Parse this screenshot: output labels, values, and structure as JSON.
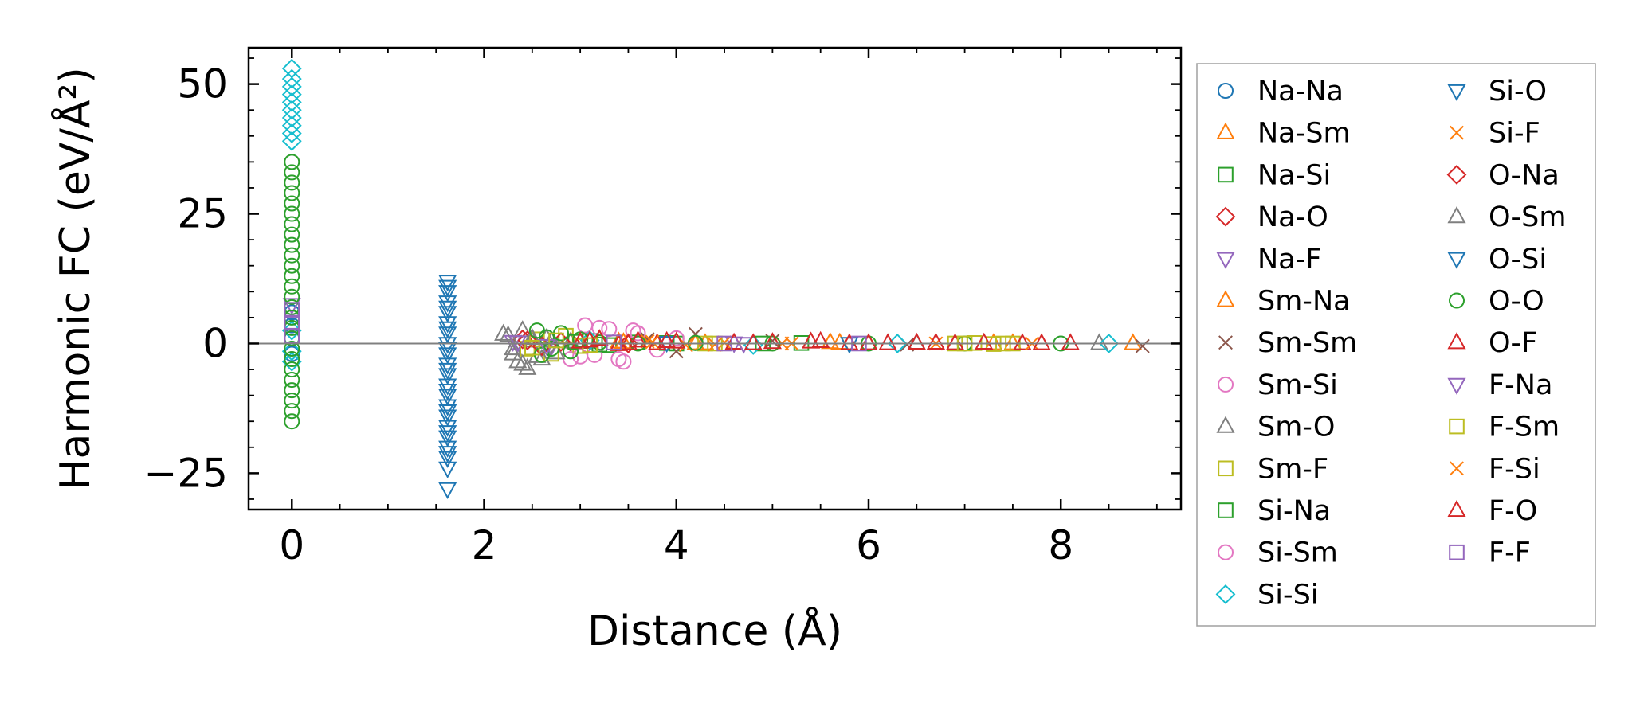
{
  "chart_data": {
    "type": "scatter",
    "xlabel": "Distance (Å)",
    "ylabel": "Harmonic FC (eV/Å²)",
    "xlim": [
      -0.45,
      9.25
    ],
    "ylim": [
      -32,
      57
    ],
    "x_ticks": [
      0,
      2,
      4,
      6,
      8
    ],
    "x_tick_labels": [
      "0",
      "2",
      "4",
      "6",
      "8"
    ],
    "y_ticks": [
      -25,
      0,
      25,
      50
    ],
    "y_tick_labels": [
      "−25",
      "0",
      "25",
      "50"
    ],
    "zero_line": 0,
    "grid": false,
    "legend_position": "outside-right",
    "legend_columns": 2,
    "series": [
      {
        "name": "Na-Na",
        "marker": "circle",
        "color": "#1f77b4",
        "points": [
          [
            0.0,
            1.0
          ],
          [
            0.0,
            3.5
          ],
          [
            0.0,
            -2.0
          ],
          [
            0.0,
            6.0
          ]
        ]
      },
      {
        "name": "Na-Sm",
        "marker": "triangle-up",
        "color": "#ff7f0e",
        "points": [
          [
            3.4,
            0.3
          ],
          [
            4.2,
            0.0
          ],
          [
            5.6,
            0.2
          ],
          [
            7.3,
            0.0
          ],
          [
            8.75,
            0.0
          ]
        ]
      },
      {
        "name": "Na-Si",
        "marker": "square",
        "color": "#2ca02c",
        "points": [
          [
            3.1,
            0.5
          ],
          [
            3.3,
            -0.3
          ],
          [
            3.6,
            0.2
          ],
          [
            4.0,
            0.0
          ],
          [
            5.3,
            0.1
          ]
        ]
      },
      {
        "name": "Na-O",
        "marker": "diamond",
        "color": "#d62728",
        "points": [
          [
            2.4,
            0.8
          ],
          [
            2.6,
            -0.6
          ],
          [
            2.9,
            0.3
          ],
          [
            3.5,
            0.0
          ]
        ]
      },
      {
        "name": "Na-F",
        "marker": "triangle-down",
        "color": "#9467bd",
        "points": [
          [
            0.0,
            7.5
          ],
          [
            2.3,
            0.4
          ],
          [
            2.7,
            -0.5
          ],
          [
            4.6,
            0.1
          ]
        ]
      },
      {
        "name": "Sm-Na",
        "marker": "triangle-up",
        "color": "#ff7f0e",
        "points": [
          [
            3.45,
            0.2
          ],
          [
            4.3,
            0.0
          ],
          [
            5.7,
            0.1
          ],
          [
            7.5,
            0.0
          ]
        ]
      },
      {
        "name": "Sm-Sm",
        "marker": "x",
        "color": "#8c564b",
        "points": [
          [
            3.7,
            0.8
          ],
          [
            4.0,
            -1.5
          ],
          [
            4.2,
            1.8
          ],
          [
            5.0,
            0.5
          ],
          [
            6.4,
            -0.2
          ],
          [
            8.85,
            -0.5
          ]
        ]
      },
      {
        "name": "Sm-Si",
        "marker": "circle",
        "color": "#e377c2",
        "points": [
          [
            2.9,
            -3.0
          ],
          [
            3.05,
            3.5
          ],
          [
            3.15,
            -2.2
          ],
          [
            3.3,
            2.8
          ],
          [
            3.45,
            -3.5
          ],
          [
            3.6,
            2.0
          ],
          [
            3.8,
            -1.2
          ],
          [
            4.0,
            1.0
          ]
        ]
      },
      {
        "name": "Sm-O",
        "marker": "triangle-up",
        "color": "#7f7f7f",
        "points": [
          [
            2.25,
            1.5
          ],
          [
            2.3,
            -1.0
          ],
          [
            2.35,
            -3.5
          ],
          [
            2.4,
            2.5
          ],
          [
            2.45,
            -4.8
          ],
          [
            2.5,
            0.5
          ],
          [
            2.55,
            -2.5
          ],
          [
            2.65,
            1.0
          ],
          [
            2.75,
            -1.8
          ],
          [
            2.9,
            0.3
          ],
          [
            6.5,
            0.0
          ],
          [
            8.4,
            0.0
          ]
        ]
      },
      {
        "name": "Sm-F",
        "marker": "square",
        "color": "#bcbd22",
        "points": [
          [
            2.45,
            -1.0
          ],
          [
            2.55,
            0.8
          ],
          [
            2.7,
            -2.0
          ],
          [
            2.85,
            1.5
          ],
          [
            3.0,
            -0.5
          ],
          [
            4.3,
            0.0
          ],
          [
            6.9,
            0.0
          ],
          [
            7.1,
            0.1
          ],
          [
            7.3,
            -0.1
          ],
          [
            7.5,
            0.0
          ]
        ]
      },
      {
        "name": "Si-Na",
        "marker": "square",
        "color": "#2ca02c",
        "points": [
          [
            2.95,
            0.3
          ],
          [
            3.2,
            -0.2
          ],
          [
            3.9,
            0.1
          ],
          [
            4.9,
            0.0
          ]
        ]
      },
      {
        "name": "Si-Sm",
        "marker": "circle",
        "color": "#e377c2",
        "points": [
          [
            3.0,
            -2.5
          ],
          [
            3.2,
            3.0
          ],
          [
            3.4,
            -3.0
          ],
          [
            3.55,
            2.5
          ]
        ]
      },
      {
        "name": "Si-Si",
        "marker": "diamond",
        "color": "#17becf",
        "points": [
          [
            0.0,
            53.0
          ],
          [
            0.0,
            51.0
          ],
          [
            0.0,
            49.5
          ],
          [
            0.0,
            48.0
          ],
          [
            0.0,
            46.5
          ],
          [
            0.0,
            45.0
          ],
          [
            0.0,
            43.5
          ],
          [
            0.0,
            42.0
          ],
          [
            0.0,
            40.5
          ],
          [
            0.0,
            39.0
          ],
          [
            0.0,
            -1.5
          ],
          [
            0.0,
            -3.5
          ],
          [
            0.0,
            2.5
          ],
          [
            3.1,
            0.6
          ],
          [
            4.8,
            -0.3
          ],
          [
            6.3,
            0.0
          ],
          [
            8.5,
            0.0
          ]
        ]
      },
      {
        "name": "Si-O",
        "marker": "triangle-down",
        "color": "#1f77b4",
        "points": [
          [
            1.62,
            12.0
          ],
          [
            1.62,
            10.0
          ],
          [
            1.62,
            8.0
          ],
          [
            1.62,
            6.0
          ],
          [
            1.62,
            4.0
          ],
          [
            1.62,
            2.0
          ],
          [
            1.62,
            0.0
          ],
          [
            1.62,
            -2.0
          ],
          [
            1.62,
            -4.0
          ],
          [
            1.62,
            -6.0
          ],
          [
            1.62,
            -8.0
          ],
          [
            1.62,
            -10.0
          ],
          [
            1.62,
            -12.0
          ],
          [
            1.62,
            -14.0
          ],
          [
            1.62,
            -16.0
          ],
          [
            1.62,
            -18.0
          ],
          [
            1.62,
            -20.0
          ],
          [
            1.62,
            -22.0
          ],
          [
            1.62,
            -24.0
          ],
          [
            1.62,
            -28.0
          ],
          [
            3.9,
            0.2
          ],
          [
            5.8,
            0.0
          ]
        ]
      },
      {
        "name": "Si-F",
        "marker": "x",
        "color": "#ff7f0e",
        "points": [
          [
            3.7,
            0.4
          ],
          [
            4.1,
            -0.3
          ],
          [
            4.5,
            0.2
          ],
          [
            5.1,
            0.0
          ],
          [
            6.7,
            0.0
          ]
        ]
      },
      {
        "name": "O-Na",
        "marker": "diamond",
        "color": "#d62728",
        "points": [
          [
            2.45,
            0.6
          ],
          [
            2.6,
            -0.5
          ],
          [
            2.8,
            0.3
          ]
        ]
      },
      {
        "name": "O-Sm",
        "marker": "triangle-up",
        "color": "#7f7f7f",
        "points": [
          [
            2.2,
            1.8
          ],
          [
            2.3,
            -2.0
          ],
          [
            2.4,
            -4.0
          ],
          [
            2.5,
            1.0
          ],
          [
            2.6,
            -3.0
          ],
          [
            2.7,
            0.5
          ]
        ]
      },
      {
        "name": "O-Si",
        "marker": "triangle-down",
        "color": "#1f77b4",
        "points": [
          [
            1.62,
            11.0
          ],
          [
            1.62,
            7.0
          ],
          [
            1.62,
            3.0
          ],
          [
            1.62,
            -1.0
          ],
          [
            1.62,
            -5.0
          ],
          [
            1.62,
            -9.0
          ],
          [
            1.62,
            -13.0
          ],
          [
            1.62,
            -17.0
          ],
          [
            1.62,
            -21.0
          ]
        ]
      },
      {
        "name": "O-O",
        "marker": "circle",
        "color": "#2ca02c",
        "points": [
          [
            0.0,
            35.0
          ],
          [
            0.0,
            33.0
          ],
          [
            0.0,
            31.0
          ],
          [
            0.0,
            29.0
          ],
          [
            0.0,
            27.0
          ],
          [
            0.0,
            25.0
          ],
          [
            0.0,
            23.0
          ],
          [
            0.0,
            21.0
          ],
          [
            0.0,
            19.0
          ],
          [
            0.0,
            17.0
          ],
          [
            0.0,
            15.0
          ],
          [
            0.0,
            13.0
          ],
          [
            0.0,
            11.0
          ],
          [
            0.0,
            9.0
          ],
          [
            0.0,
            7.0
          ],
          [
            0.0,
            5.0
          ],
          [
            0.0,
            3.0
          ],
          [
            0.0,
            1.0
          ],
          [
            0.0,
            -1.0
          ],
          [
            0.0,
            -3.0
          ],
          [
            0.0,
            -5.0
          ],
          [
            0.0,
            -7.0
          ],
          [
            0.0,
            -9.0
          ],
          [
            0.0,
            -11.0
          ],
          [
            0.0,
            -13.0
          ],
          [
            0.0,
            -15.0
          ],
          [
            2.55,
            2.5
          ],
          [
            2.6,
            -2.2
          ],
          [
            2.65,
            1.2
          ],
          [
            2.7,
            -1.0
          ],
          [
            2.8,
            2.0
          ],
          [
            2.9,
            -1.5
          ],
          [
            3.0,
            0.8
          ],
          [
            3.2,
            0.2
          ],
          [
            3.6,
            0.0
          ],
          [
            4.2,
            0.1
          ],
          [
            5.0,
            0.0
          ],
          [
            6.0,
            0.0
          ],
          [
            7.0,
            0.0
          ],
          [
            8.0,
            0.0
          ]
        ]
      },
      {
        "name": "O-F",
        "marker": "triangle-up",
        "color": "#d62728",
        "points": [
          [
            3.0,
            0.3
          ],
          [
            3.2,
            0.8
          ],
          [
            3.4,
            -0.2
          ],
          [
            3.6,
            0.5
          ],
          [
            3.8,
            0.0
          ],
          [
            4.0,
            0.3
          ],
          [
            4.6,
            0.1
          ],
          [
            5.0,
            0.2
          ],
          [
            5.5,
            0.4
          ],
          [
            5.8,
            0.0
          ],
          [
            6.2,
            0.0
          ],
          [
            6.5,
            0.1
          ],
          [
            6.9,
            0.0
          ],
          [
            7.2,
            0.1
          ],
          [
            7.6,
            0.0
          ],
          [
            8.1,
            0.0
          ]
        ]
      },
      {
        "name": "F-Na",
        "marker": "triangle-down",
        "color": "#9467bd",
        "points": [
          [
            2.35,
            0.3
          ],
          [
            2.65,
            -0.4
          ],
          [
            4.7,
            0.0
          ]
        ]
      },
      {
        "name": "F-Sm",
        "marker": "square",
        "color": "#bcbd22",
        "points": [
          [
            2.5,
            -0.8
          ],
          [
            2.75,
            0.6
          ],
          [
            3.1,
            -0.3
          ],
          [
            4.4,
            0.0
          ],
          [
            7.0,
            0.0
          ],
          [
            7.4,
            0.0
          ]
        ]
      },
      {
        "name": "F-Si",
        "marker": "x",
        "color": "#ff7f0e",
        "points": [
          [
            3.75,
            0.3
          ],
          [
            4.4,
            -0.2
          ],
          [
            5.2,
            0.0
          ],
          [
            7.7,
            0.0
          ]
        ]
      },
      {
        "name": "F-O",
        "marker": "triangle-up",
        "color": "#d62728",
        "points": [
          [
            3.1,
            0.5
          ],
          [
            3.5,
            0.0
          ],
          [
            3.9,
            0.4
          ],
          [
            4.8,
            0.0
          ],
          [
            5.4,
            0.3
          ],
          [
            6.0,
            0.0
          ],
          [
            6.7,
            0.1
          ],
          [
            7.8,
            0.0
          ]
        ]
      },
      {
        "name": "F-F",
        "marker": "square",
        "color": "#9467bd",
        "points": [
          [
            0.0,
            1.5
          ],
          [
            0.0,
            4.0
          ],
          [
            0.0,
            6.5
          ],
          [
            3.35,
            0.2
          ],
          [
            4.5,
            0.0
          ],
          [
            5.9,
            0.0
          ]
        ]
      }
    ]
  }
}
